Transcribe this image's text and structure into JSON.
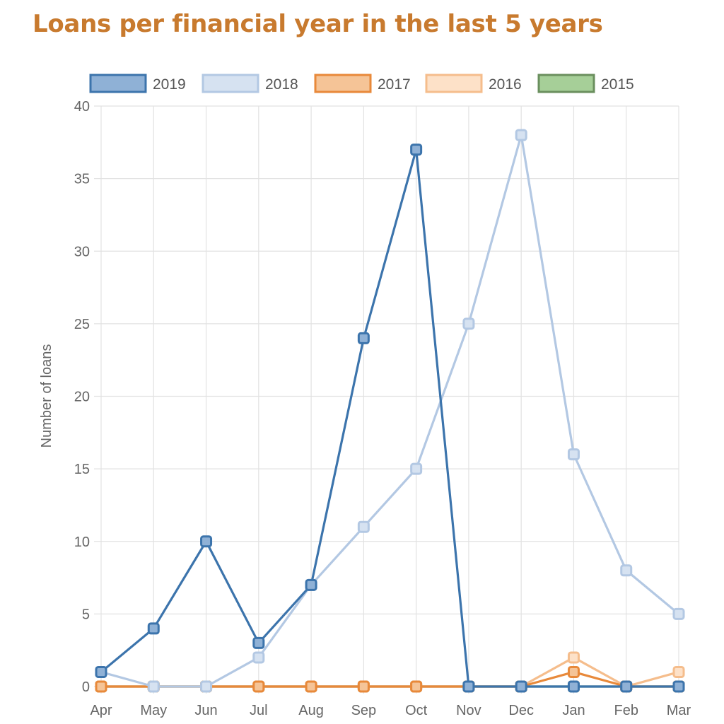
{
  "title": "Loans per financial year in the last 5 years",
  "chart_data": {
    "type": "line",
    "title": "Loans per financial year in the last 5 years",
    "xlabel": "",
    "ylabel": "Number of loans",
    "ylim": [
      0,
      40
    ],
    "yticks": [
      0,
      5,
      10,
      15,
      20,
      25,
      30,
      35,
      40
    ],
    "grid": true,
    "legend_position": "top",
    "categories": [
      "Apr",
      "May",
      "Jun",
      "Jul",
      "Aug",
      "Sep",
      "Oct",
      "Nov",
      "Dec",
      "Jan",
      "Feb",
      "Mar"
    ],
    "series": [
      {
        "name": "2015",
        "color": "#6a8f5e",
        "fill": "#a6cf98",
        "values": [
          0,
          0,
          0,
          0,
          0,
          0,
          0,
          0,
          0,
          0,
          0,
          0
        ]
      },
      {
        "name": "2016",
        "color": "#f5bd8c",
        "fill": "#fde1c8",
        "values": [
          0,
          0,
          0,
          0,
          0,
          0,
          0,
          0,
          0,
          2,
          0,
          1
        ]
      },
      {
        "name": "2017",
        "color": "#e8893a",
        "fill": "#f5c497",
        "values": [
          0,
          0,
          0,
          0,
          0,
          0,
          0,
          0,
          0,
          1,
          0,
          0
        ]
      },
      {
        "name": "2018",
        "color": "#b3c8e3",
        "fill": "#d6e2f1",
        "values": [
          1,
          0,
          0,
          2,
          7,
          11,
          15,
          25,
          38,
          16,
          8,
          5
        ]
      },
      {
        "name": "2019",
        "color": "#3c74ac",
        "fill": "#8fb1d6",
        "values": [
          1,
          4,
          10,
          3,
          7,
          24,
          37,
          0,
          0,
          0,
          0,
          0
        ]
      }
    ],
    "legend_order": [
      "2019",
      "2018",
      "2017",
      "2016",
      "2015"
    ]
  }
}
